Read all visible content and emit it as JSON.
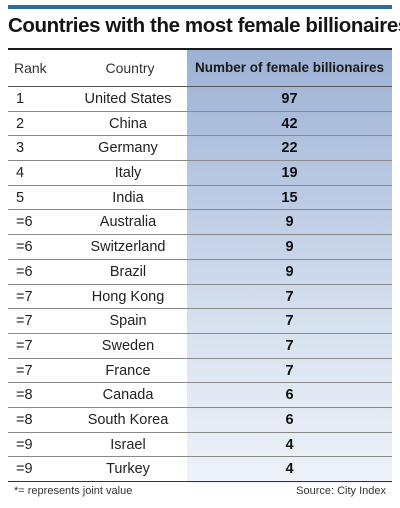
{
  "chart_data": {
    "type": "table",
    "title": "Countries with the most female billionaires",
    "columns": [
      "Rank",
      "Country",
      "Number of female billionaires"
    ],
    "rows": [
      {
        "rank": "1",
        "country": "United States",
        "value": 97
      },
      {
        "rank": "2",
        "country": "China",
        "value": 42
      },
      {
        "rank": "3",
        "country": "Germany",
        "value": 22
      },
      {
        "rank": "4",
        "country": "Italy",
        "value": 19
      },
      {
        "rank": "5",
        "country": "India",
        "value": 15
      },
      {
        "rank": "=6",
        "country": "Australia",
        "value": 9
      },
      {
        "rank": "=6",
        "country": "Switzerland",
        "value": 9
      },
      {
        "rank": "=6",
        "country": "Brazil",
        "value": 9
      },
      {
        "rank": "=7",
        "country": "Hong Kong",
        "value": 7
      },
      {
        "rank": "=7",
        "country": "Spain",
        "value": 7
      },
      {
        "rank": "=7",
        "country": "Sweden",
        "value": 7
      },
      {
        "rank": "=7",
        "country": "France",
        "value": 7
      },
      {
        "rank": "=8",
        "country": "Canada",
        "value": 6
      },
      {
        "rank": "=8",
        "country": "South Korea",
        "value": 6
      },
      {
        "rank": "=9",
        "country": "Israel",
        "value": 4
      },
      {
        "rank": "=9",
        "country": "Turkey",
        "value": 4
      }
    ],
    "footnote": "*= represents joint value",
    "source": "Source: City Index",
    "accent_color": "#2d6aa0",
    "highlight_color": "#9db1d4"
  }
}
